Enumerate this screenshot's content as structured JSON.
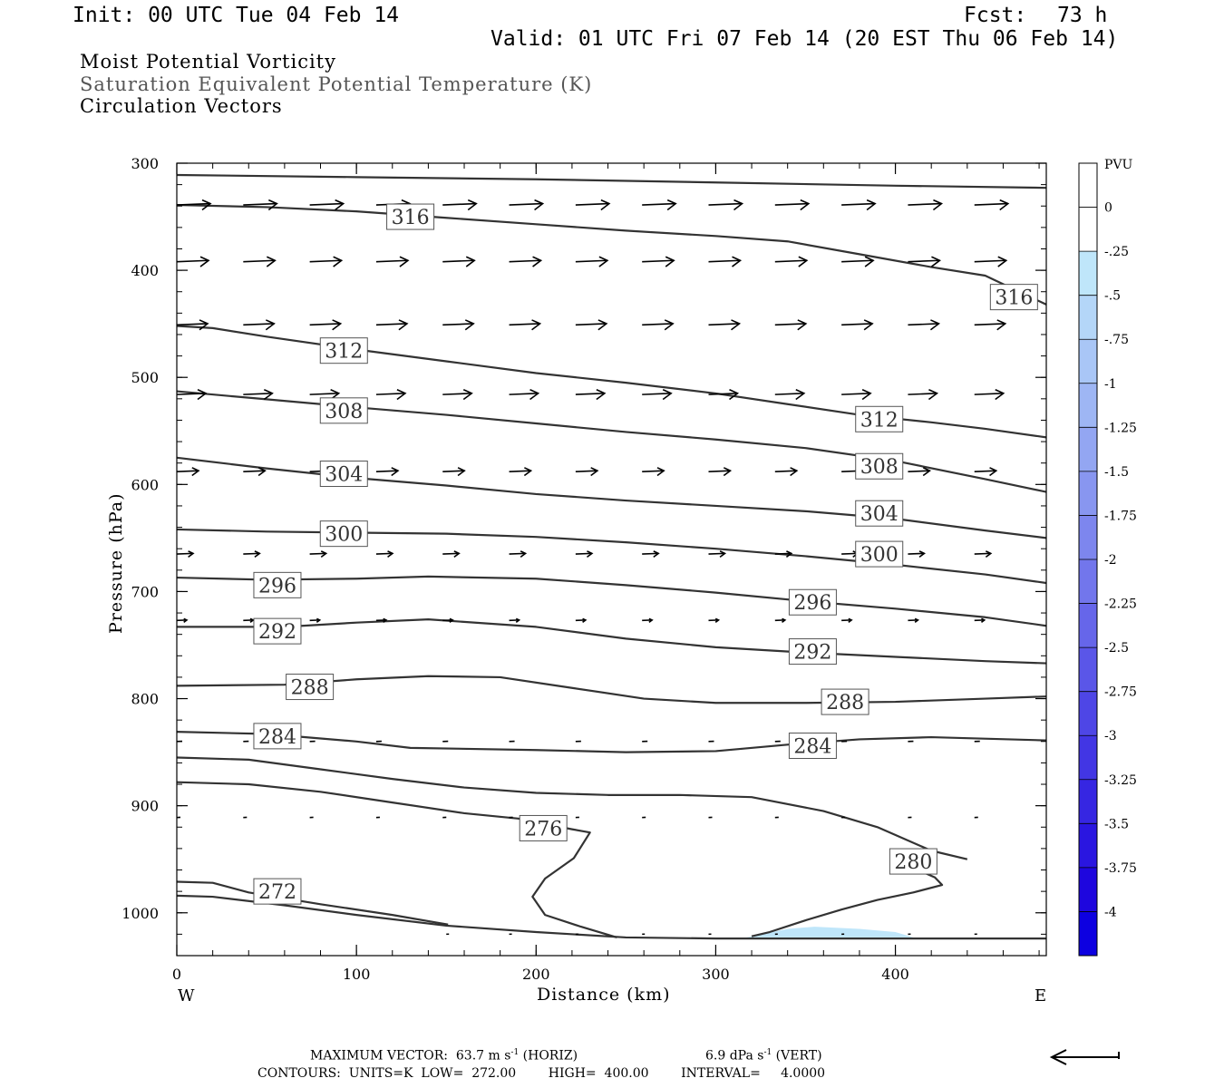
{
  "header": {
    "init": "Init: 00 UTC Tue 04 Feb 14",
    "fcst_label": "Fcst:",
    "fcst_value": "73 h",
    "valid": "Valid: 01 UTC Fri 07 Feb 14 (20 EST Thu 06 Feb 14)"
  },
  "fields": {
    "line1": "Moist Potential Vorticity",
    "line2": "Saturation Equivalent Potential Temperature (K)",
    "line3": "Circulation Vectors"
  },
  "footer": {
    "max_vector": "MAXIMUM VECTOR:  63.7 m s",
    "max_vector_exp": "-1",
    "max_vector_h": " (HORIZ)",
    "vert_value": "6.9 dPa s",
    "vert_exp": "-1",
    "vert_label": " (VERT)",
    "contours": "CONTOURS:  UNITS=K  LOW=  272.00        HIGH=  400.00        INTERVAL=     4.0000"
  },
  "colors": {
    "contour": "#333333",
    "vector": "#000000",
    "mpv_fill": "#bfe6fa"
  },
  "chart_data": {
    "type": "cross-section",
    "xlabel": "Distance (km)",
    "ylabel": "Pressure (hPa)",
    "x_ticks": [
      0,
      100,
      200,
      300,
      400
    ],
    "y_ticks": [
      300,
      400,
      500,
      600,
      700,
      800,
      900,
      1000
    ],
    "xlim": [
      0,
      484
    ],
    "ylim": [
      300,
      1040
    ],
    "y_reversed": true,
    "end_labels": {
      "left": "W",
      "right": "E"
    },
    "colorbar": {
      "title": "PVU",
      "ticks": [
        "0",
        "-.25",
        "-.5",
        "-.75",
        "-1",
        "-1.25",
        "-1.5",
        "-1.75",
        "-2",
        "-2.25",
        "-2.5",
        "-2.75",
        "-3",
        "-3.25",
        "-3.5",
        "-3.75",
        "-4"
      ],
      "colors": [
        "#ffffff",
        "#ffffff",
        "#bfe6fa",
        "#b4d6f8",
        "#a9c6f6",
        "#9eb6f4",
        "#93a6f2",
        "#8896f0",
        "#7d86ee",
        "#7276ec",
        "#6666ea",
        "#5a56e8",
        "#4e46e6",
        "#4236e4",
        "#3626e2",
        "#2a16e0",
        "#1e06de",
        "#0d00e0"
      ]
    },
    "contours": [
      {
        "label": "316",
        "points": [
          [
            0,
            311
          ],
          [
            100,
            313
          ],
          [
            200,
            315
          ],
          [
            300,
            318
          ],
          [
            400,
            321
          ],
          [
            484,
            323
          ]
        ]
      },
      {
        "label": "316",
        "points": [
          [
            0,
            339
          ],
          [
            50,
            341
          ],
          [
            100,
            345
          ],
          [
            150,
            351
          ],
          [
            200,
            357
          ],
          [
            250,
            363
          ],
          [
            300,
            368
          ],
          [
            340,
            373
          ],
          [
            380,
            385
          ],
          [
            420,
            397
          ],
          [
            450,
            405
          ],
          [
            484,
            432
          ]
        ]
      },
      {
        "label": "312",
        "points": [
          [
            0,
            452
          ],
          [
            20,
            454
          ],
          [
            50,
            462
          ],
          [
            100,
            474
          ],
          [
            150,
            485
          ],
          [
            200,
            496
          ],
          [
            250,
            505
          ],
          [
            300,
            515
          ],
          [
            340,
            525
          ],
          [
            380,
            535
          ],
          [
            420,
            542
          ],
          [
            450,
            548
          ],
          [
            484,
            556
          ]
        ]
      },
      {
        "label": "308",
        "points": [
          [
            0,
            513
          ],
          [
            40,
            519
          ],
          [
            100,
            528
          ],
          [
            150,
            535
          ],
          [
            200,
            543
          ],
          [
            250,
            551
          ],
          [
            300,
            558
          ],
          [
            350,
            566
          ],
          [
            400,
            578
          ],
          [
            450,
            595
          ],
          [
            484,
            607
          ]
        ]
      },
      {
        "label": "304",
        "points": [
          [
            0,
            575
          ],
          [
            50,
            585
          ],
          [
            100,
            594
          ],
          [
            150,
            601
          ],
          [
            200,
            609
          ],
          [
            250,
            615
          ],
          [
            300,
            620
          ],
          [
            350,
            625
          ],
          [
            400,
            632
          ],
          [
            450,
            643
          ],
          [
            484,
            650
          ]
        ]
      },
      {
        "label": "300",
        "points": [
          [
            0,
            642
          ],
          [
            50,
            644
          ],
          [
            100,
            645
          ],
          [
            150,
            646
          ],
          [
            200,
            649
          ],
          [
            250,
            654
          ],
          [
            300,
            660
          ],
          [
            350,
            667
          ],
          [
            400,
            675
          ],
          [
            450,
            684
          ],
          [
            484,
            692
          ]
        ]
      },
      {
        "label": "296",
        "points": [
          [
            0,
            687
          ],
          [
            50,
            689
          ],
          [
            100,
            688
          ],
          [
            140,
            686
          ],
          [
            200,
            688
          ],
          [
            250,
            694
          ],
          [
            300,
            701
          ],
          [
            350,
            709
          ],
          [
            400,
            716
          ],
          [
            450,
            724
          ],
          [
            484,
            732
          ]
        ]
      },
      {
        "label": "292",
        "points": [
          [
            0,
            733
          ],
          [
            60,
            733
          ],
          [
            100,
            729
          ],
          [
            140,
            726
          ],
          [
            200,
            733
          ],
          [
            250,
            744
          ],
          [
            300,
            752
          ],
          [
            350,
            757
          ],
          [
            400,
            761
          ],
          [
            450,
            765
          ],
          [
            484,
            767
          ]
        ]
      },
      {
        "label": "288",
        "points": [
          [
            0,
            788
          ],
          [
            60,
            787
          ],
          [
            100,
            782
          ],
          [
            140,
            779
          ],
          [
            180,
            780
          ],
          [
            220,
            790
          ],
          [
            260,
            800
          ],
          [
            300,
            804
          ],
          [
            350,
            804
          ],
          [
            400,
            803
          ],
          [
            450,
            800
          ],
          [
            484,
            798
          ]
        ]
      },
      {
        "label": "284",
        "points": [
          [
            0,
            831
          ],
          [
            50,
            833
          ],
          [
            100,
            840
          ],
          [
            130,
            846
          ],
          [
            200,
            848
          ],
          [
            250,
            850
          ],
          [
            300,
            849
          ],
          [
            340,
            843
          ],
          [
            380,
            838
          ],
          [
            420,
            836
          ],
          [
            484,
            839
          ]
        ]
      },
      {
        "label": "",
        "points": [
          [
            0,
            855
          ],
          [
            40,
            857
          ],
          [
            80,
            866
          ],
          [
            120,
            875
          ],
          [
            160,
            883
          ],
          [
            200,
            888
          ],
          [
            240,
            890
          ],
          [
            280,
            890
          ],
          [
            320,
            892
          ],
          [
            360,
            905
          ],
          [
            390,
            920
          ],
          [
            420,
            942
          ],
          [
            440,
            950
          ]
        ]
      },
      {
        "label": "276",
        "points": [
          [
            0,
            878
          ],
          [
            40,
            880
          ],
          [
            80,
            887
          ],
          [
            120,
            897
          ],
          [
            160,
            907
          ],
          [
            190,
            912
          ],
          [
            220,
            922
          ],
          [
            230,
            925
          ],
          [
            221,
            949
          ],
          [
            205,
            968
          ],
          [
            198,
            985
          ],
          [
            205,
            1002
          ],
          [
            225,
            1013
          ],
          [
            245,
            1023
          ]
        ]
      },
      {
        "label": "280",
        "points": [
          [
            320,
            1022
          ],
          [
            330,
            1018
          ],
          [
            350,
            1007
          ],
          [
            370,
            997
          ],
          [
            390,
            988
          ],
          [
            410,
            981
          ],
          [
            426,
            974
          ],
          [
            422,
            967
          ],
          [
            410,
            958
          ],
          [
            400,
            950
          ]
        ]
      },
      {
        "label": "272",
        "points": [
          [
            0,
            971
          ],
          [
            20,
            972
          ],
          [
            40,
            981
          ],
          [
            80,
            992
          ],
          [
            120,
            1002
          ],
          [
            151,
            1011
          ]
        ]
      },
      {
        "label": "",
        "points": [
          [
            0,
            984
          ],
          [
            20,
            985
          ],
          [
            60,
            993
          ],
          [
            100,
            1002
          ],
          [
            150,
            1012
          ],
          [
            200,
            1018
          ],
          [
            250,
            1023
          ],
          [
            300,
            1024
          ],
          [
            350,
            1024
          ],
          [
            400,
            1024
          ],
          [
            484,
            1024
          ]
        ]
      }
    ],
    "contour_labels": [
      {
        "text": "316",
        "x": 130,
        "p": 350
      },
      {
        "text": "316",
        "x": 466,
        "p": 425
      },
      {
        "text": "312",
        "x": 93,
        "p": 475
      },
      {
        "text": "308",
        "x": 93,
        "p": 531
      },
      {
        "text": "304",
        "x": 93,
        "p": 590
      },
      {
        "text": "300",
        "x": 93,
        "p": 646
      },
      {
        "text": "296",
        "x": 56,
        "p": 694
      },
      {
        "text": "292",
        "x": 56,
        "p": 737
      },
      {
        "text": "288",
        "x": 74,
        "p": 789
      },
      {
        "text": "284",
        "x": 56,
        "p": 835
      },
      {
        "text": "276",
        "x": 204,
        "p": 921
      },
      {
        "text": "272",
        "x": 56,
        "p": 980
      },
      {
        "text": "312",
        "x": 391,
        "p": 539
      },
      {
        "text": "308",
        "x": 391,
        "p": 583
      },
      {
        "text": "304",
        "x": 391,
        "p": 627
      },
      {
        "text": "300",
        "x": 391,
        "p": 665
      },
      {
        "text": "296",
        "x": 354,
        "p": 710
      },
      {
        "text": "292",
        "x": 354,
        "p": 756
      },
      {
        "text": "288",
        "x": 372,
        "p": 803
      },
      {
        "text": "284",
        "x": 354,
        "p": 844
      },
      {
        "text": "280",
        "x": 410,
        "p": 952
      }
    ],
    "mpv_region": {
      "level": "-.25 to -.5",
      "points": [
        [
          317,
          1023
        ],
        [
          340,
          1015
        ],
        [
          355,
          1013
        ],
        [
          380,
          1015
        ],
        [
          400,
          1018
        ],
        [
          410,
          1023
        ]
      ]
    },
    "vector_rows": [
      {
        "p": 339,
        "xs": [
          0,
          37,
          74,
          111,
          148,
          185,
          222,
          259,
          296,
          333,
          370,
          407,
          444
        ],
        "u": 37,
        "w": 0
      },
      {
        "p": 392,
        "xs": [
          0,
          37,
          74,
          111,
          148,
          185,
          222,
          259,
          296,
          333,
          370,
          407,
          444
        ],
        "u": 35,
        "w": 0
      },
      {
        "p": 451,
        "xs": [
          0,
          37,
          74,
          111,
          148,
          185,
          222,
          259,
          296,
          333,
          370,
          407,
          444
        ],
        "u": 34,
        "w": 0
      },
      {
        "p": 516,
        "xs": [
          0,
          37,
          74,
          111,
          148,
          185,
          222,
          259,
          296,
          333,
          370,
          407,
          444
        ],
        "u": 32,
        "w": 0
      },
      {
        "p": 588,
        "xs": [
          0,
          37,
          74,
          111,
          148,
          185,
          222,
          259,
          296,
          333,
          370,
          407,
          444
        ],
        "u": 24,
        "w": 0
      },
      {
        "p": 665,
        "xs": [
          0,
          37,
          74,
          111,
          148,
          185,
          222,
          259,
          296,
          333,
          370,
          407,
          444
        ],
        "u": 18,
        "w": 0
      },
      {
        "p": 727,
        "xs": [
          0,
          37,
          74,
          111,
          148,
          185,
          222,
          259,
          296,
          333,
          370,
          407,
          444
        ],
        "u": 11,
        "w": 0
      },
      {
        "p": 840,
        "xs": [
          0,
          37,
          74,
          111,
          148,
          185,
          222,
          259,
          296,
          333,
          370,
          407,
          444
        ],
        "u": 6,
        "w": 0
      },
      {
        "p": 911,
        "xs": [
          0,
          37,
          74,
          111,
          148,
          185,
          222,
          259,
          296,
          333,
          370,
          407,
          444
        ],
        "u": 4,
        "w": 0
      },
      {
        "p": 1020,
        "xs": [
          150,
          185,
          222,
          259,
          296,
          333,
          370,
          407,
          444
        ],
        "u": 3,
        "w": 0
      }
    ],
    "reference_vector": {
      "direction": "left"
    }
  }
}
